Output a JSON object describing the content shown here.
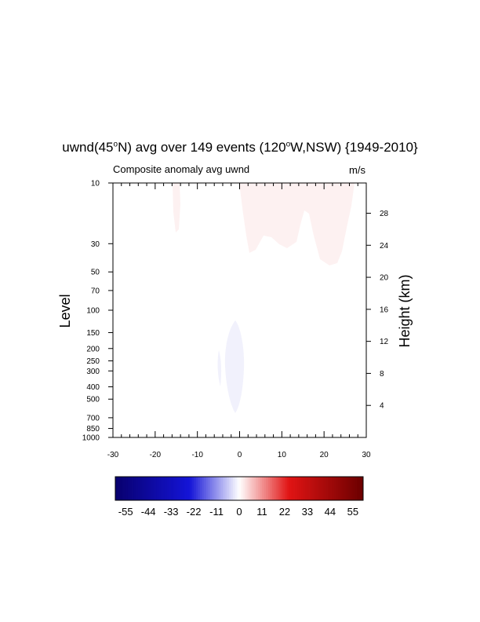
{
  "title": {
    "prefix": "uwnd(45",
    "deg1": "o",
    "mid": "N) avg over 149 events (120",
    "deg2": "o",
    "suffix": "W,NSW) {1949-2010}"
  },
  "subtitle": "Composite anomaly avg uwnd",
  "units": "m/s",
  "chart_data": {
    "type": "heatmap",
    "title": "uwnd(45°N) avg over 149 events (120°W,NSW) {1949-2010}",
    "subtitle": "Composite anomaly avg uwnd",
    "units": "m/s",
    "xlabel": "",
    "ylabel": "Level",
    "ylabel_right": "Height (km)",
    "x_ticks": [
      -30,
      -20,
      -10,
      0,
      10,
      20,
      30
    ],
    "xlim": [
      -30,
      30
    ],
    "y_scale": "log-pressure",
    "y_ticks": [
      10,
      30,
      50,
      70,
      100,
      150,
      200,
      250,
      300,
      400,
      500,
      700,
      850,
      1000
    ],
    "ylim": [
      1000,
      10
    ],
    "y_right_ticks": [
      4,
      8,
      12,
      16,
      20,
      24,
      28
    ],
    "colorbar": {
      "labels": [
        "-55",
        "-44",
        "-33",
        "-22",
        "-11",
        "0",
        "11",
        "22",
        "33",
        "44",
        "55"
      ],
      "range": [
        -60,
        60
      ],
      "colormap": "blue-white-red",
      "low_color": "#08006e",
      "mid_color": "#ffffff",
      "high_color": "#6b0000"
    },
    "features": [
      {
        "type": "weak positive anomaly",
        "x_range": [
          0,
          28
        ],
        "levels_hpa": [
          10,
          35
        ],
        "value_approx": 1
      },
      {
        "type": "weak positive anomaly",
        "x_range": [
          -16,
          -15
        ],
        "levels_hpa": [
          10,
          25
        ],
        "value_approx": 1
      },
      {
        "type": "weak negative anomaly",
        "x_range": [
          -3,
          1
        ],
        "levels_hpa": [
          120,
          600
        ],
        "value_approx": -1
      },
      {
        "type": "weak negative anomaly",
        "x_range": [
          -5,
          -4
        ],
        "levels_hpa": [
          220,
          380
        ],
        "value_approx": -1
      }
    ]
  }
}
